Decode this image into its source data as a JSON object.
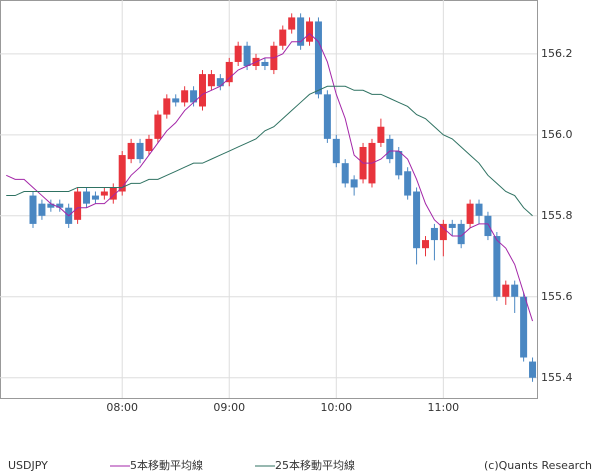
{
  "chart_data": {
    "type": "candlestick",
    "symbol": "USDJPY",
    "credit": "(c)Quants Research",
    "up_color": "#e8343c",
    "down_color": "#4a87c2",
    "grid": true,
    "xlim": [
      411.5,
      712.5
    ],
    "ylim": [
      155.35,
      156.333
    ],
    "xticks": [
      {
        "value": 480,
        "label": "08:00"
      },
      {
        "value": 540,
        "label": "09:00"
      },
      {
        "value": 600,
        "label": "10:00"
      },
      {
        "value": 660,
        "label": "11:00"
      }
    ],
    "yticks": [
      155.4,
      155.6,
      155.8,
      {
        "value": 156,
        "label": "156.0"
      },
      156.2
    ],
    "x": [
      415,
      420,
      425,
      430,
      435,
      440,
      445,
      450,
      455,
      460,
      465,
      470,
      475,
      480,
      485,
      490,
      495,
      500,
      505,
      510,
      515,
      520,
      525,
      530,
      535,
      540,
      545,
      550,
      555,
      560,
      565,
      570,
      575,
      580,
      585,
      590,
      595,
      600,
      605,
      610,
      615,
      620,
      625,
      630,
      635,
      640,
      645,
      650,
      655,
      660,
      665,
      670,
      675,
      680,
      685,
      690,
      695,
      700,
      705,
      710
    ],
    "open": [
      null,
      null,
      null,
      155.85,
      155.83,
      155.83,
      155.83,
      155.82,
      155.79,
      155.86,
      155.85,
      155.85,
      155.84,
      155.86,
      155.94,
      155.98,
      155.96,
      155.99,
      156.05,
      156.09,
      156.08,
      156.11,
      156.07,
      156.12,
      156.14,
      156.13,
      156.18,
      156.22,
      156.17,
      156.18,
      156.16,
      156.22,
      156.26,
      156.29,
      156.23,
      156.28,
      156.1,
      155.99,
      155.93,
      155.89,
      155.89,
      155.88,
      155.98,
      155.99,
      155.96,
      155.91,
      155.86,
      155.72,
      155.77,
      155.74,
      155.78,
      155.78,
      155.78,
      155.83,
      155.8,
      155.75,
      155.6,
      155.63,
      155.6,
      155.44
    ],
    "high": [
      null,
      null,
      null,
      155.86,
      155.84,
      155.84,
      155.84,
      155.83,
      155.87,
      155.87,
      155.86,
      155.87,
      155.88,
      155.96,
      155.99,
      155.99,
      156.0,
      156.06,
      156.1,
      156.1,
      156.12,
      156.12,
      156.16,
      156.16,
      156.15,
      156.19,
      156.23,
      156.23,
      156.2,
      156.19,
      156.23,
      156.27,
      156.3,
      156.3,
      156.29,
      156.29,
      156.11,
      156.0,
      155.94,
      155.9,
      155.98,
      155.99,
      156.04,
      156.0,
      155.97,
      155.92,
      155.87,
      155.75,
      155.78,
      155.79,
      155.79,
      155.79,
      155.84,
      155.84,
      155.81,
      155.76,
      155.64,
      155.64,
      155.61,
      155.45
    ],
    "low": [
      null,
      null,
      null,
      155.77,
      155.79,
      155.81,
      155.81,
      155.77,
      155.78,
      155.82,
      155.83,
      155.84,
      155.83,
      155.85,
      155.93,
      155.93,
      155.95,
      155.98,
      156.04,
      156.07,
      156.07,
      156.07,
      156.06,
      156.11,
      156.11,
      156.12,
      156.17,
      156.16,
      156.16,
      156.16,
      156.15,
      156.21,
      156.25,
      156.21,
      156.22,
      156.09,
      155.98,
      155.92,
      155.87,
      155.85,
      155.88,
      155.87,
      155.97,
      155.93,
      155.89,
      155.84,
      155.68,
      155.7,
      155.69,
      155.7,
      155.75,
      155.72,
      155.77,
      155.78,
      155.74,
      155.59,
      155.58,
      155.56,
      155.44,
      155.39
    ],
    "close": [
      null,
      null,
      null,
      155.78,
      155.8,
      155.82,
      155.82,
      155.78,
      155.86,
      155.83,
      155.84,
      155.86,
      155.87,
      155.95,
      155.98,
      155.94,
      155.99,
      156.05,
      156.09,
      156.08,
      156.11,
      156.08,
      156.15,
      156.15,
      156.12,
      156.18,
      156.22,
      156.17,
      156.19,
      156.17,
      156.22,
      156.26,
      156.29,
      156.22,
      156.28,
      156.1,
      155.99,
      155.93,
      155.88,
      155.87,
      155.97,
      155.98,
      156.02,
      155.94,
      155.9,
      155.85,
      155.72,
      155.74,
      155.74,
      155.78,
      155.77,
      155.73,
      155.83,
      155.8,
      155.75,
      155.6,
      155.63,
      155.6,
      155.45,
      155.4
    ],
    "series": [
      {
        "name": "5本移動平均線",
        "color": "#a326a8",
        "values": [
          155.9,
          155.89,
          155.89,
          155.87,
          155.85,
          155.83,
          155.82,
          155.8,
          155.82,
          155.82,
          155.83,
          155.83,
          155.85,
          155.87,
          155.9,
          155.92,
          155.95,
          155.98,
          156.01,
          156.03,
          156.06,
          156.08,
          156.1,
          156.11,
          156.12,
          156.14,
          156.16,
          156.17,
          156.18,
          156.19,
          156.19,
          156.2,
          156.23,
          156.23,
          156.25,
          156.23,
          156.18,
          156.1,
          156.04,
          155.95,
          155.93,
          155.93,
          155.94,
          155.96,
          155.96,
          155.94,
          155.89,
          155.83,
          155.79,
          155.77,
          155.75,
          155.75,
          155.77,
          155.78,
          155.78,
          155.74,
          155.72,
          155.68,
          155.61,
          155.54
        ]
      },
      {
        "name": "25本移動平均線",
        "color": "#2f7262",
        "values": [
          155.85,
          155.85,
          155.86,
          155.86,
          155.86,
          155.86,
          155.86,
          155.86,
          155.87,
          155.87,
          155.87,
          155.87,
          155.87,
          155.87,
          155.88,
          155.88,
          155.89,
          155.89,
          155.9,
          155.91,
          155.92,
          155.93,
          155.93,
          155.94,
          155.95,
          155.96,
          155.97,
          155.98,
          155.99,
          156.01,
          156.02,
          156.04,
          156.06,
          156.08,
          156.1,
          156.11,
          156.12,
          156.12,
          156.12,
          156.11,
          156.11,
          156.1,
          156.1,
          156.09,
          156.08,
          156.07,
          156.05,
          156.04,
          156.02,
          156.0,
          155.99,
          155.97,
          155.95,
          155.93,
          155.9,
          155.88,
          155.86,
          155.85,
          155.82,
          155.8
        ]
      }
    ]
  }
}
